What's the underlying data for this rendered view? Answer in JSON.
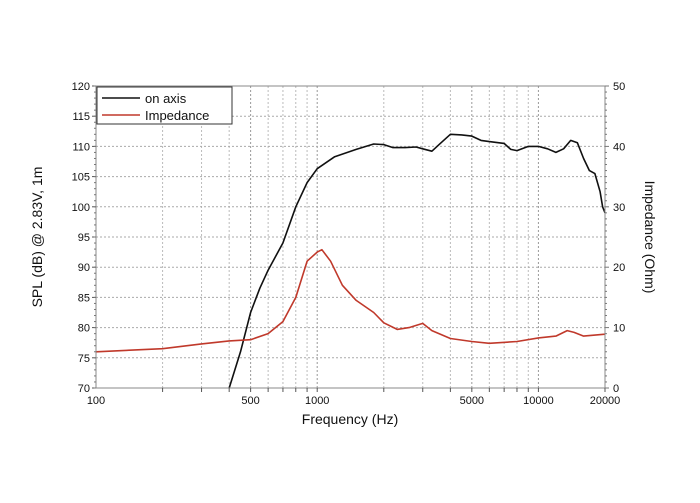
{
  "chart_data": {
    "type": "line",
    "title": "",
    "xlabel": "Frequency (Hz)",
    "ylabel": "SPL (dB) @ 2.83V, 1m",
    "y2label": "Impedance (Ohm)",
    "xscale": "log",
    "xlim": [
      100,
      20000
    ],
    "ylim": [
      70,
      120
    ],
    "y2lim": [
      0,
      50
    ],
    "xticks": [
      100,
      500,
      1000,
      5000,
      10000,
      20000
    ],
    "yticks": [
      70,
      75,
      80,
      85,
      90,
      95,
      100,
      105,
      110,
      115,
      120
    ],
    "y2ticks": [
      0,
      10,
      20,
      30,
      40,
      50
    ],
    "grid": true,
    "legend_position": "top-left",
    "series": [
      {
        "name": "on axis",
        "axis": "left",
        "color": "#111111",
        "points": [
          [
            400,
            70
          ],
          [
            450,
            76
          ],
          [
            500,
            82.5
          ],
          [
            550,
            86.5
          ],
          [
            600,
            89.5
          ],
          [
            700,
            94
          ],
          [
            800,
            100
          ],
          [
            900,
            104
          ],
          [
            1000,
            106.3
          ],
          [
            1200,
            108.3
          ],
          [
            1500,
            109.5
          ],
          [
            1800,
            110.4
          ],
          [
            2000,
            110.3
          ],
          [
            2200,
            109.8
          ],
          [
            2500,
            109.8
          ],
          [
            2800,
            109.9
          ],
          [
            3000,
            109.6
          ],
          [
            3300,
            109.2
          ],
          [
            3600,
            110.5
          ],
          [
            4000,
            112
          ],
          [
            4500,
            111.9
          ],
          [
            5000,
            111.7
          ],
          [
            5500,
            111
          ],
          [
            6000,
            110.8
          ],
          [
            7000,
            110.5
          ],
          [
            7500,
            109.5
          ],
          [
            8000,
            109.3
          ],
          [
            9000,
            110
          ],
          [
            10000,
            110
          ],
          [
            11000,
            109.6
          ],
          [
            12000,
            109
          ],
          [
            13000,
            109.6
          ],
          [
            14000,
            111
          ],
          [
            15000,
            110.6
          ],
          [
            16000,
            108
          ],
          [
            17000,
            106
          ],
          [
            18000,
            105.5
          ],
          [
            19000,
            102.5
          ],
          [
            19500,
            100
          ],
          [
            20000,
            99
          ]
        ]
      },
      {
        "name": "Impedance",
        "axis": "right",
        "color": "#c0392b",
        "points": [
          [
            100,
            6
          ],
          [
            200,
            6.5
          ],
          [
            300,
            7.3
          ],
          [
            400,
            7.8
          ],
          [
            500,
            8
          ],
          [
            600,
            9
          ],
          [
            700,
            11
          ],
          [
            800,
            15
          ],
          [
            900,
            21
          ],
          [
            1000,
            22.5
          ],
          [
            1050,
            22.9
          ],
          [
            1150,
            21
          ],
          [
            1300,
            17
          ],
          [
            1500,
            14.5
          ],
          [
            1800,
            12.5
          ],
          [
            2000,
            10.8
          ],
          [
            2300,
            9.7
          ],
          [
            2600,
            10
          ],
          [
            3000,
            10.7
          ],
          [
            3300,
            9.5
          ],
          [
            4000,
            8.2
          ],
          [
            5000,
            7.7
          ],
          [
            6000,
            7.4
          ],
          [
            8000,
            7.7
          ],
          [
            10000,
            8.3
          ],
          [
            12000,
            8.6
          ],
          [
            13500,
            9.5
          ],
          [
            14500,
            9.2
          ],
          [
            16000,
            8.6
          ],
          [
            20000,
            8.9
          ]
        ]
      }
    ]
  }
}
